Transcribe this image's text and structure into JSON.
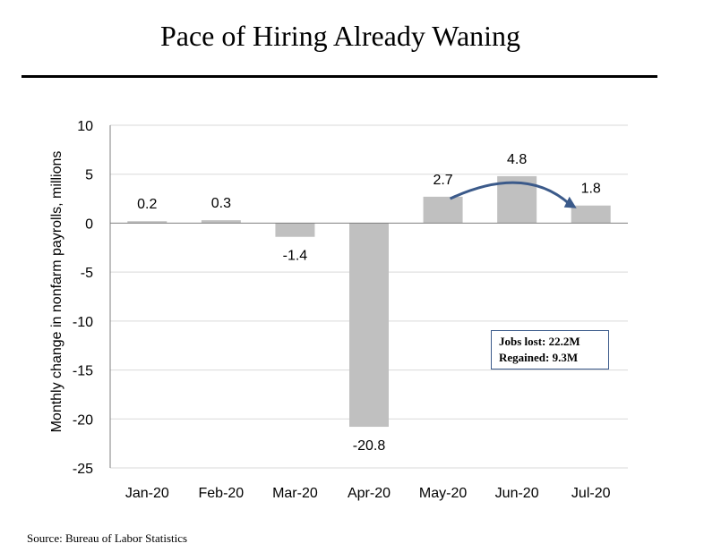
{
  "title": "Pace of Hiring Already Waning",
  "source": "Source: Bureau of Labor Statistics",
  "annotation": {
    "line1": "Jobs lost: 22.2M",
    "line2": "Regained: 9.3M"
  },
  "colors": {
    "bar": "#c0c0c0",
    "arrow": "#3b5a8a",
    "grid": "#d9d9d9",
    "axis": "#7f7f7f"
  },
  "chart_data": {
    "type": "bar",
    "title": "Pace of Hiring Already Waning",
    "xlabel": "",
    "ylabel": "Monthly change in nonfarm payrolls, millions",
    "categories": [
      "Jan-20",
      "Feb-20",
      "Mar-20",
      "Apr-20",
      "May-20",
      "Jun-20",
      "Jul-20"
    ],
    "values": [
      0.2,
      0.3,
      -1.4,
      -20.8,
      2.7,
      4.8,
      1.8
    ],
    "data_labels": [
      "0.2",
      "0.3",
      "-1.4",
      "-20.8",
      "2.7",
      "4.8",
      "1.8"
    ],
    "ylim": [
      -25,
      10
    ],
    "yticks": [
      10,
      5,
      0,
      -5,
      -10,
      -15,
      -20,
      -25
    ],
    "grid": true,
    "legend": "none"
  }
}
